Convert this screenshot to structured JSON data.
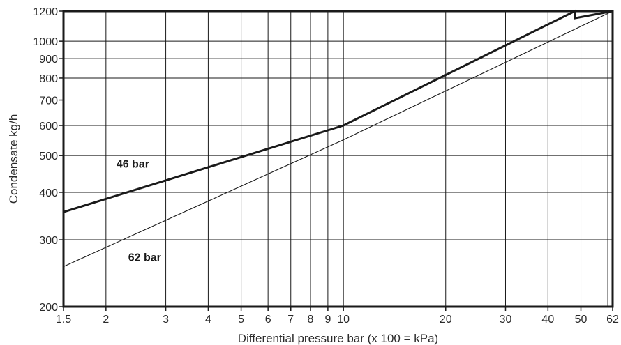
{
  "chart_data": {
    "type": "line",
    "title": "",
    "xlabel": "Differential pressure bar (x 100 = kPa)",
    "ylabel": "Condensate kg/h",
    "x_scale": "log",
    "y_scale": "log",
    "xlim": [
      1.5,
      62
    ],
    "ylim": [
      200,
      1200
    ],
    "grid": true,
    "x_ticks": [
      {
        "value": 1.5,
        "label": "1.5"
      },
      {
        "value": 2,
        "label": "2"
      },
      {
        "value": 3,
        "label": "3"
      },
      {
        "value": 4,
        "label": "4"
      },
      {
        "value": 5,
        "label": "5"
      },
      {
        "value": 6,
        "label": "6"
      },
      {
        "value": 7,
        "label": "7"
      },
      {
        "value": 8,
        "label": "8"
      },
      {
        "value": 9,
        "label": "9"
      },
      {
        "value": 10,
        "label": "10"
      },
      {
        "value": 20,
        "label": "20"
      },
      {
        "value": 30,
        "label": "30"
      },
      {
        "value": 40,
        "label": "40"
      },
      {
        "value": 50,
        "label": "50"
      },
      {
        "value": 62,
        "label": "62"
      }
    ],
    "x_minor_gridlines": [
      60
    ],
    "y_ticks": [
      {
        "value": 200,
        "label": "200"
      },
      {
        "value": 300,
        "label": "300"
      },
      {
        "value": 400,
        "label": "400"
      },
      {
        "value": 500,
        "label": "500"
      },
      {
        "value": 600,
        "label": "600"
      },
      {
        "value": 700,
        "label": "700"
      },
      {
        "value": 800,
        "label": "800"
      },
      {
        "value": 900,
        "label": "900"
      },
      {
        "value": 1000,
        "label": "1000"
      },
      {
        "value": 1200,
        "label": "1200"
      }
    ],
    "series": [
      {
        "name": "46 bar",
        "style": "thick",
        "color": "#1a1a1a",
        "x": [
          1.5,
          10,
          48,
          48,
          62
        ],
        "y": [
          355,
          600,
          1200,
          1150,
          1200
        ]
      },
      {
        "name": "62 bar",
        "style": "thin",
        "color": "#1a1a1a",
        "x": [
          1.5,
          10,
          62
        ],
        "y": [
          255,
          550,
          1200
        ]
      }
    ],
    "labels": [
      {
        "text": "46 bar",
        "x": 2.4,
        "y": 465
      },
      {
        "text": "62 bar",
        "x": 2.6,
        "y": 264
      }
    ]
  }
}
